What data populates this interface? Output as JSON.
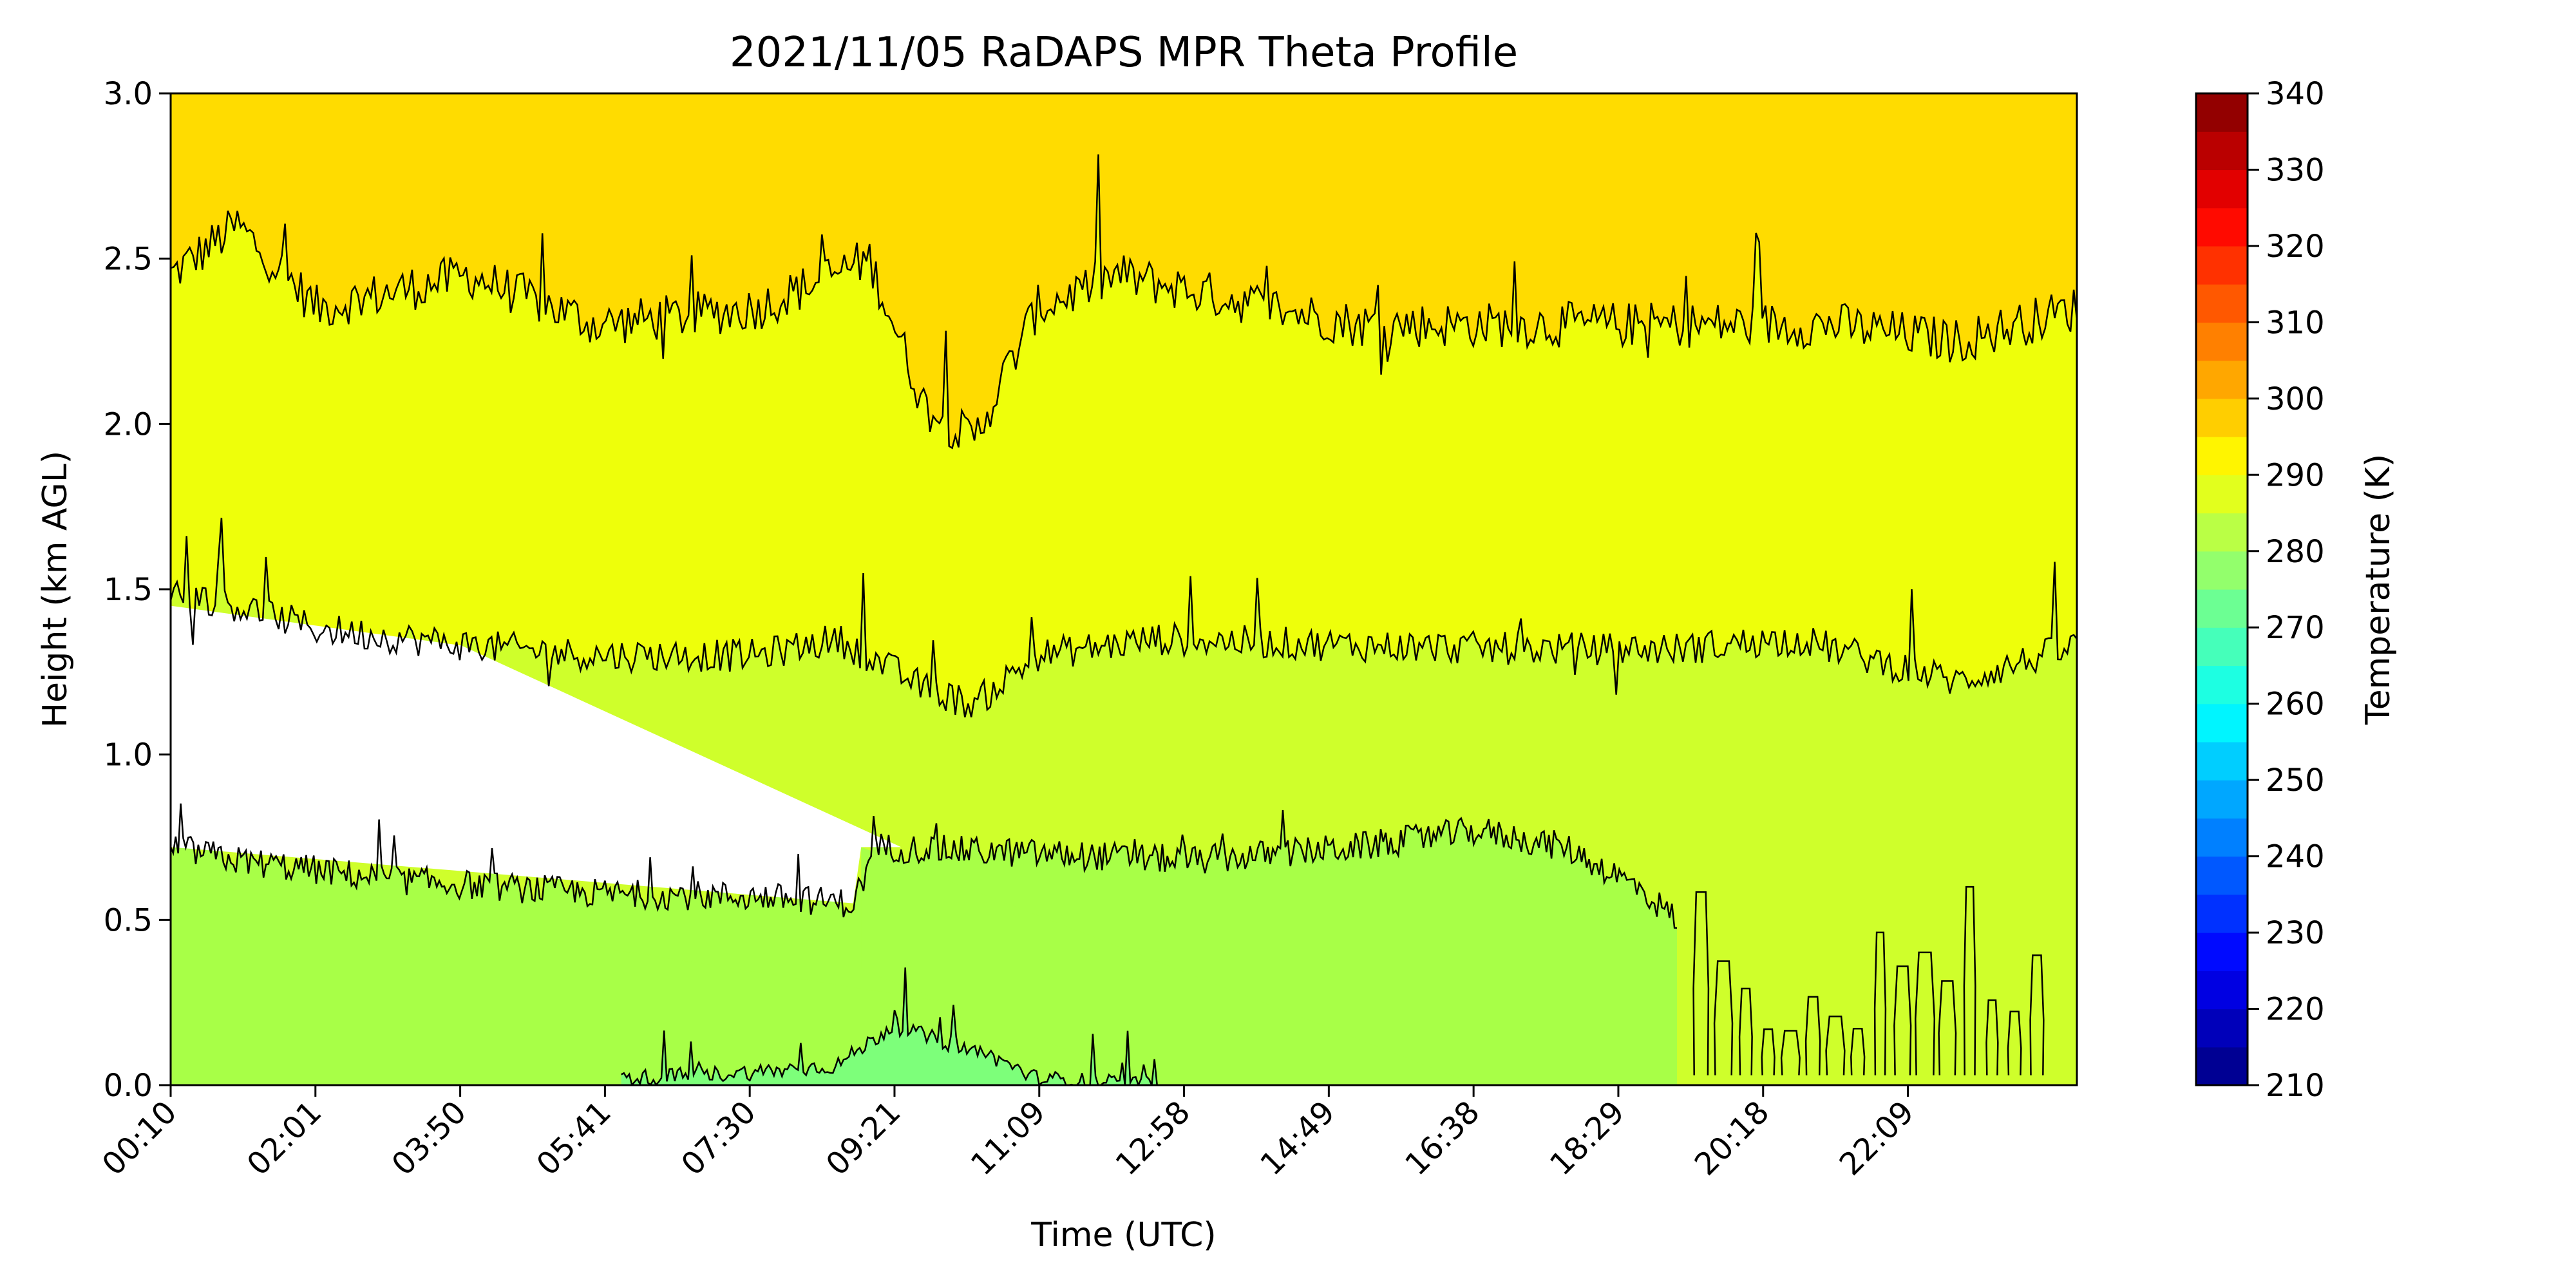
{
  "chart_data": {
    "type": "heatmap",
    "subtype": "filled-contour",
    "title": "2021/11/05 RaDAPS MPR Theta Profile",
    "xlabel": "Time (UTC)",
    "ylabel": "Height (km AGL)",
    "x_ticks": [
      "00:10",
      "02:01",
      "03:50",
      "05:41",
      "07:30",
      "09:21",
      "11:09",
      "12:58",
      "14:49",
      "16:38",
      "18:29",
      "20:18",
      "22:09"
    ],
    "x_tick_rotation_deg": 45,
    "x_range_hours": [
      0.1667,
      24.0
    ],
    "ylim": [
      0,
      3
    ],
    "y_ticks": [
      "0.0",
      "0.5",
      "1.0",
      "1.5",
      "2.0",
      "2.5",
      "3.0"
    ],
    "colorbar": {
      "label": "Temperature (K)",
      "min": 210,
      "max": 340,
      "step": 5,
      "tick_values": [
        210,
        220,
        230,
        240,
        250,
        260,
        270,
        280,
        290,
        300,
        310,
        320,
        330,
        340
      ],
      "colormap": "jet",
      "position": "right"
    },
    "contour_levels_K": [
      280,
      285,
      290,
      295
    ],
    "contour_line_color": "#000000",
    "band_colors": {
      "275-280": "#7dff7a",
      "280-285": "#a8ff47",
      "285-290": "#cfff2b",
      "290-295": "#eeff0a",
      "295-300": "#ffdc00",
      "missing": "#ffffff"
    },
    "contour_height_km_anchors": {
      "295K": {
        "hours": [
          0.17,
          1.0,
          2.0,
          3.9,
          5.5,
          7.5,
          8.9,
          9.6,
          10.2,
          11.0,
          12.0,
          13.0,
          15.0,
          17.0,
          19.0,
          21.0,
          22.5,
          24.0
        ],
        "heights": [
          2.45,
          2.6,
          2.35,
          2.45,
          2.3,
          2.35,
          2.5,
          2.05,
          1.95,
          2.35,
          2.45,
          2.4,
          2.3,
          2.3,
          2.3,
          2.3,
          2.25,
          2.35
        ]
      },
      "290K": {
        "hours": [
          0.17,
          1.0,
          2.0,
          3.9,
          5.5,
          7.5,
          8.5,
          9.6,
          10.2,
          11.0,
          12.5,
          15.0,
          17.0,
          19.0,
          20.5,
          22.5,
          24.0
        ],
        "heights": [
          1.5,
          1.45,
          1.38,
          1.33,
          1.3,
          1.3,
          1.35,
          1.2,
          1.15,
          1.3,
          1.35,
          1.33,
          1.32,
          1.32,
          1.35,
          1.22,
          1.33
        ]
      },
      "285K": {
        "hours": [
          0.17,
          1.0,
          3.0,
          5.5,
          7.5,
          8.7,
          9.0,
          11.0,
          13.0,
          15.0,
          16.5,
          17.6,
          18.5,
          19.0
        ],
        "heights": [
          0.72,
          0.68,
          0.62,
          0.58,
          0.57,
          0.55,
          0.72,
          0.7,
          0.68,
          0.72,
          0.77,
          0.72,
          0.6,
          0.5
        ]
      },
      "280K": {
        "hours": [
          5.8,
          7.5,
          8.5,
          9.2,
          10.5,
          11.0,
          12.5
        ],
        "heights": [
          0.02,
          0.04,
          0.06,
          0.18,
          0.08,
          0.02,
          0.0
        ]
      }
    }
  }
}
